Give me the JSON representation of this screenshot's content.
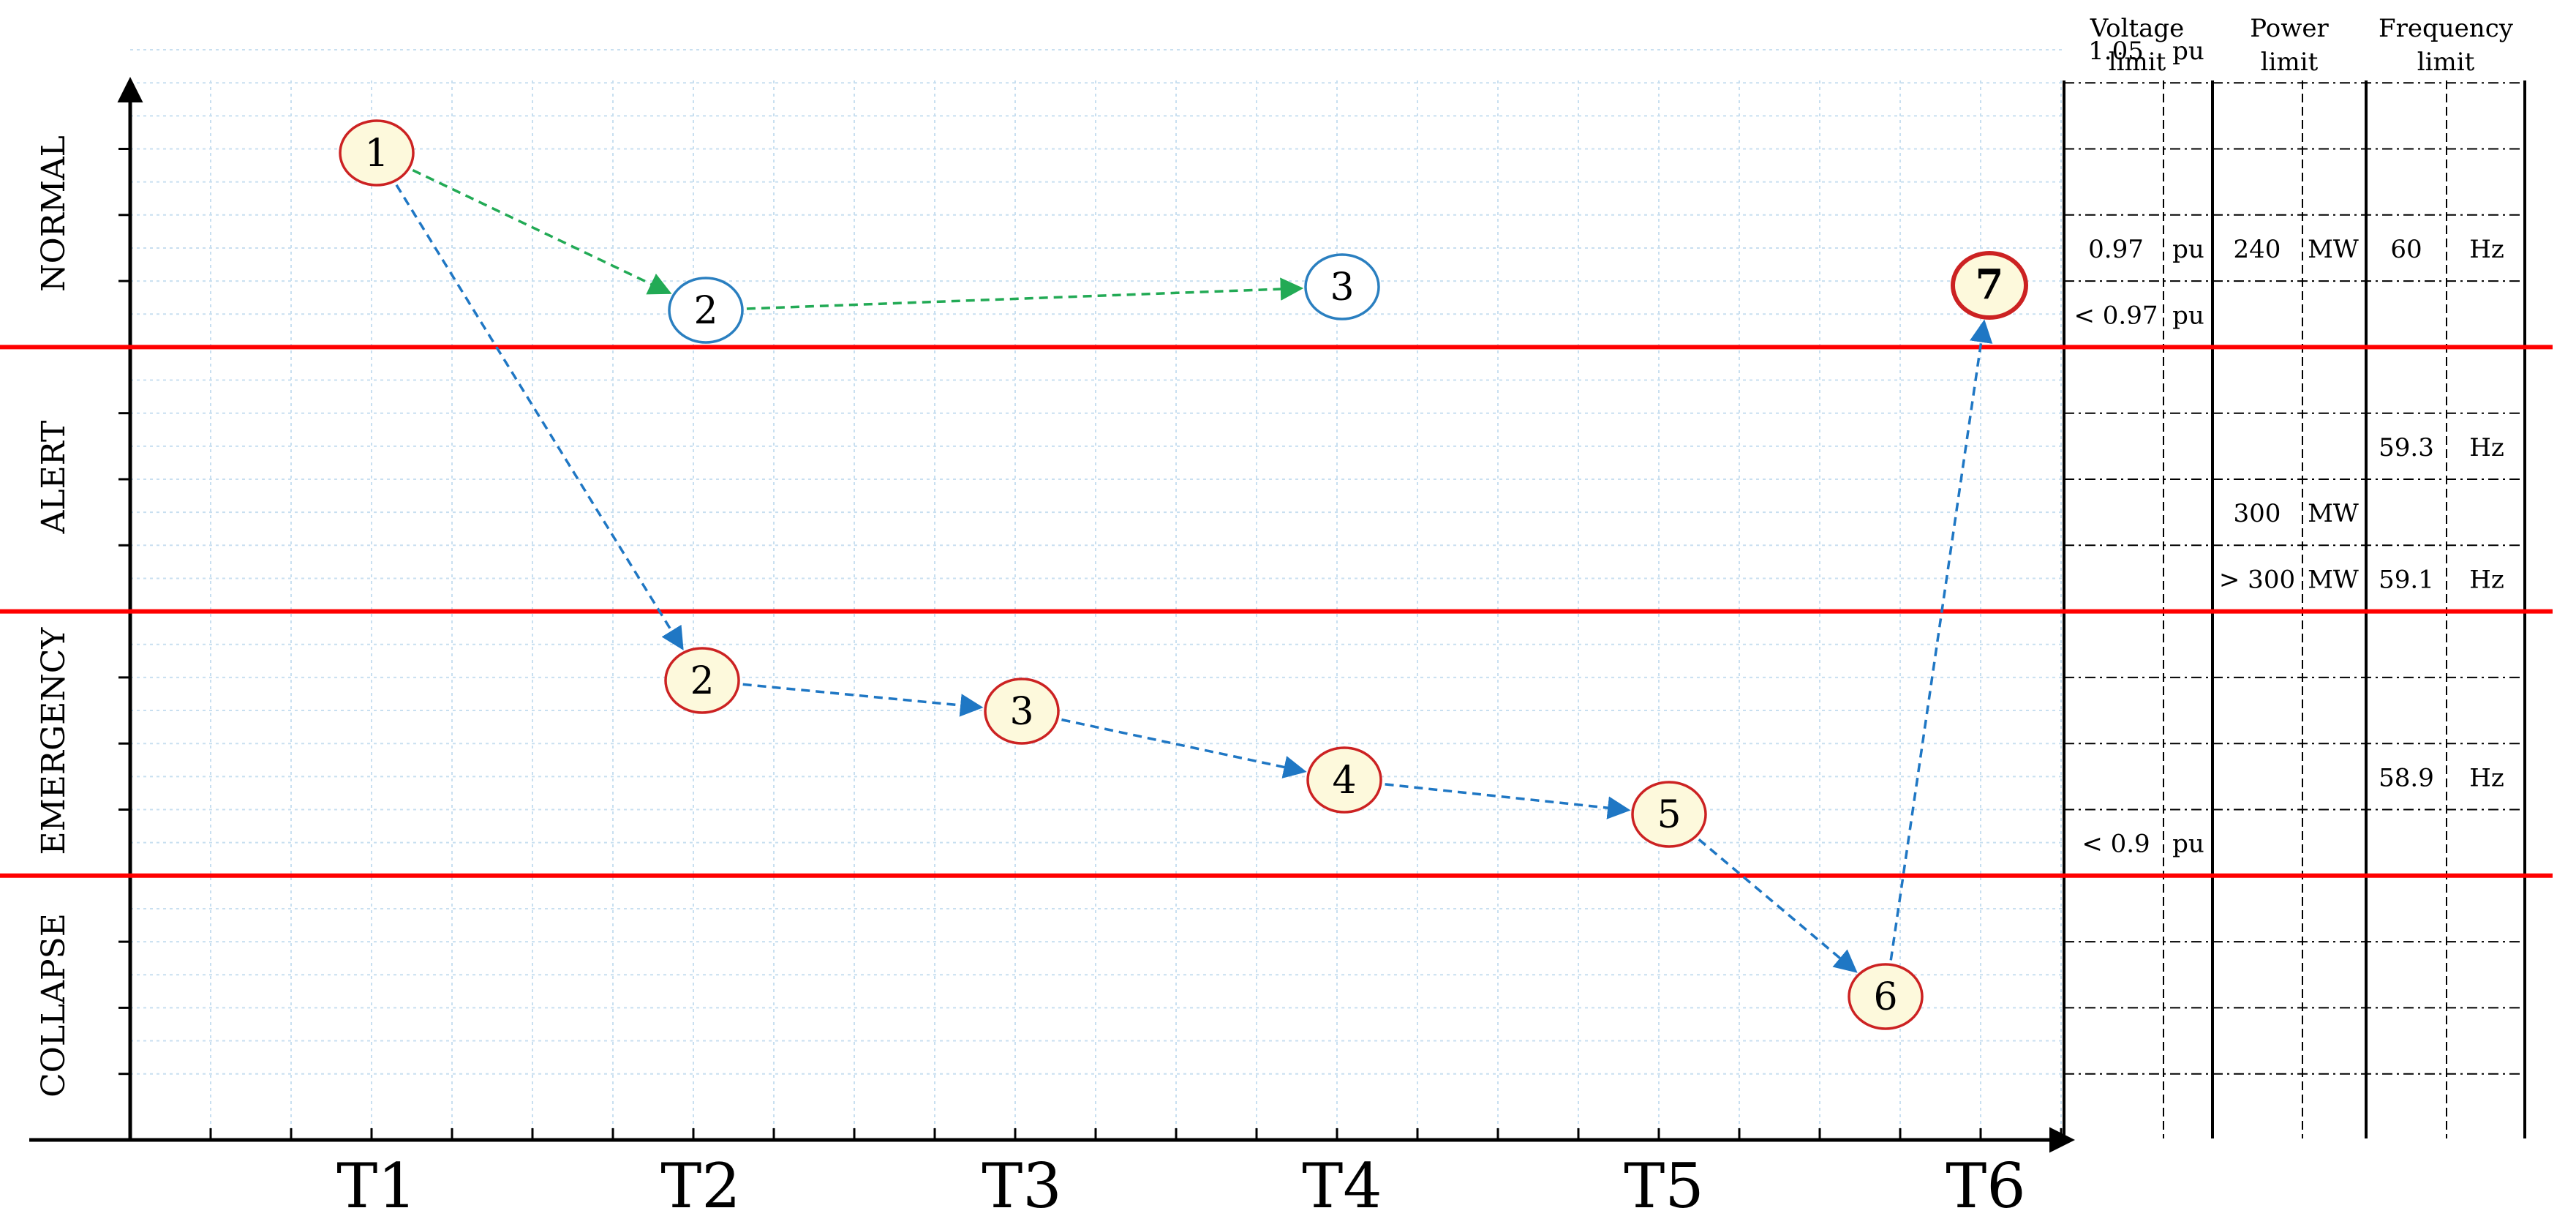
{
  "states": [
    "NORMAL",
    "ALERT",
    "EMERGENCY",
    "COLLAPSE"
  ],
  "time_labels": [
    "T1",
    "T2",
    "T3",
    "T4",
    "T5",
    "T6"
  ],
  "limit_headers": [
    {
      "line1": "Voltage",
      "line2": "limit"
    },
    {
      "line1": "Power",
      "line2": "limit"
    },
    {
      "line1": "Frequency",
      "line2": "limit"
    }
  ],
  "limit_rows": [
    {
      "voltage": "1.05",
      "voltage_unit": "pu",
      "power": "",
      "power_unit": "",
      "frequency": "",
      "frequency_unit": ""
    },
    {
      "voltage": "",
      "voltage_unit": "",
      "power": "",
      "power_unit": "",
      "frequency": "",
      "frequency_unit": ""
    },
    {
      "voltage": "",
      "voltage_unit": "",
      "power": "",
      "power_unit": "",
      "frequency": "",
      "frequency_unit": ""
    },
    {
      "voltage": "0.97",
      "voltage_unit": "pu",
      "power": "240",
      "power_unit": "MW",
      "frequency": "60",
      "frequency_unit": "Hz"
    },
    {
      "voltage": "< 0.97",
      "voltage_unit": "pu",
      "power": "",
      "power_unit": "",
      "frequency": "",
      "frequency_unit": ""
    },
    {
      "voltage": "",
      "voltage_unit": "",
      "power": "",
      "power_unit": "",
      "frequency": "",
      "frequency_unit": ""
    },
    {
      "voltage": "",
      "voltage_unit": "",
      "power": "",
      "power_unit": "",
      "frequency": "59.3",
      "frequency_unit": "Hz"
    },
    {
      "voltage": "",
      "voltage_unit": "",
      "power": "300",
      "power_unit": "MW",
      "frequency": "",
      "frequency_unit": ""
    },
    {
      "voltage": "",
      "voltage_unit": "",
      "power": "> 300",
      "power_unit": "MW",
      "frequency": "59.1",
      "frequency_unit": "Hz"
    },
    {
      "voltage": "",
      "voltage_unit": "",
      "power": "",
      "power_unit": "",
      "frequency": "",
      "frequency_unit": ""
    },
    {
      "voltage": "",
      "voltage_unit": "",
      "power": "",
      "power_unit": "",
      "frequency": "",
      "frequency_unit": ""
    },
    {
      "voltage": "",
      "voltage_unit": "",
      "power": "",
      "power_unit": "",
      "frequency": "58.9",
      "frequency_unit": "Hz"
    },
    {
      "voltage": "< 0.9",
      "voltage_unit": "pu",
      "power": "",
      "power_unit": "",
      "frequency": "",
      "frequency_unit": ""
    },
    {
      "voltage": "",
      "voltage_unit": "",
      "power": "",
      "power_unit": "",
      "frequency": "",
      "frequency_unit": ""
    },
    {
      "voltage": "",
      "voltage_unit": "",
      "power": "",
      "power_unit": "",
      "frequency": "",
      "frequency_unit": ""
    },
    {
      "voltage": "",
      "voltage_unit": "",
      "power": "",
      "power_unit": "",
      "frequency": "",
      "frequency_unit": ""
    }
  ],
  "nodes": [
    {
      "id": "a1",
      "label": "1",
      "style": "red",
      "bold": false
    },
    {
      "id": "g2",
      "label": "2",
      "style": "blue",
      "bold": false
    },
    {
      "id": "g3",
      "label": "3",
      "style": "blue",
      "bold": false
    },
    {
      "id": "b2",
      "label": "2",
      "style": "red",
      "bold": false
    },
    {
      "id": "b3",
      "label": "3",
      "style": "red",
      "bold": false
    },
    {
      "id": "b4",
      "label": "4",
      "style": "red",
      "bold": false
    },
    {
      "id": "b5",
      "label": "5",
      "style": "red",
      "bold": false
    },
    {
      "id": "b6",
      "label": "6",
      "style": "red",
      "bold": false
    },
    {
      "id": "b7",
      "label": "7",
      "style": "red",
      "bold": true
    }
  ],
  "edges": [
    {
      "from": "a1",
      "to": "g2",
      "color": "green"
    },
    {
      "from": "g2",
      "to": "g3",
      "color": "green"
    },
    {
      "from": "a1",
      "to": "b2",
      "color": "blue"
    },
    {
      "from": "b2",
      "to": "b3",
      "color": "blue"
    },
    {
      "from": "b3",
      "to": "b4",
      "color": "blue"
    },
    {
      "from": "b4",
      "to": "b5",
      "color": "blue"
    },
    {
      "from": "b5",
      "to": "b6",
      "color": "blue"
    },
    {
      "from": "b6",
      "to": "b7",
      "color": "blue"
    }
  ],
  "colors": {
    "boundary": "#ff0000",
    "grid": "#c8dff0",
    "green_arrow": "#22aa55",
    "blue_arrow": "#1f77c4",
    "red_node_stroke": "#cc2222",
    "blue_node_stroke": "#2a7fc0",
    "red_node_fill": "#fdf9dc",
    "blue_node_fill": "#ffffff",
    "axis": "#000000"
  }
}
